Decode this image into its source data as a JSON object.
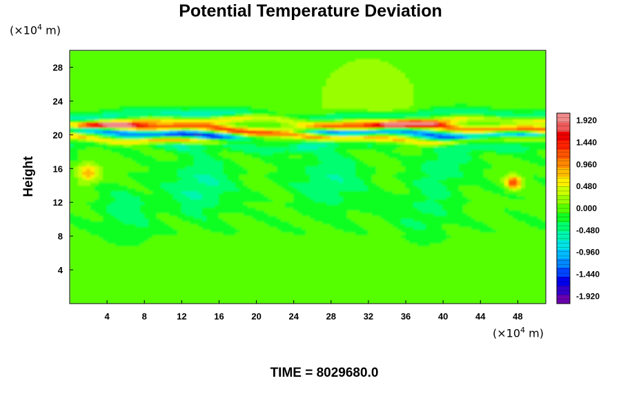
{
  "chart_data": {
    "type": "heatmap",
    "title": "Potential Temperature Deviation",
    "ylabel": "Height",
    "y_unit": {
      "prefix": "(×10",
      "exponent": "4",
      "suffix": " m)"
    },
    "x_unit": {
      "prefix": "(×10",
      "exponent": "4",
      "suffix": " m)"
    },
    "xlim": [
      0,
      51
    ],
    "ylim": [
      0,
      30
    ],
    "x_ticks": [
      4,
      8,
      12,
      16,
      20,
      24,
      28,
      32,
      36,
      40,
      44,
      48
    ],
    "y_ticks": [
      4,
      8,
      12,
      16,
      20,
      24,
      28
    ],
    "colorbar": {
      "range": [
        -2.08,
        2.08
      ],
      "labels": [
        "1.920",
        "1.440",
        "0.960",
        "0.480",
        "0.000",
        "-0.480",
        "-0.960",
        "-1.440",
        "-1.920"
      ],
      "label_values": [
        1.92,
        1.44,
        0.96,
        0.48,
        0.0,
        -0.48,
        -0.96,
        -1.44,
        -1.92
      ],
      "colors": [
        "#6a00b0",
        "#3300cc",
        "#0000ee",
        "#0044ff",
        "#0088ff",
        "#00bbff",
        "#00e5e5",
        "#00f5b0",
        "#00ff70",
        "#11ff22",
        "#55ff00",
        "#99ff00",
        "#ccff00",
        "#ffee00",
        "#ffbb00",
        "#ff8800",
        "#ff5500",
        "#ff2200",
        "#ee0000",
        "#f05a5a",
        "#f08a8a"
      ]
    },
    "background_value": -0.05,
    "features": [
      {
        "kind": "band",
        "y": 20.8,
        "value": 1.6,
        "thickness": 0.45
      },
      {
        "kind": "band",
        "y": 20.2,
        "value": -1.7,
        "thickness": 0.45
      },
      {
        "kind": "band",
        "y": 19.6,
        "value": 1.2,
        "thickness": 0.4
      },
      {
        "kind": "band",
        "y": 21.6,
        "value": 0.9,
        "thickness": 0.45
      },
      {
        "kind": "band",
        "y": 22.3,
        "value": -0.6,
        "thickness": 0.6
      },
      {
        "kind": "band",
        "y": 18.8,
        "value": -0.4,
        "thickness": 0.6
      },
      {
        "kind": "blob",
        "x": 32,
        "y": 24,
        "value": 0.3,
        "radius": 6
      },
      {
        "kind": "blob",
        "x": 2,
        "y": 15.5,
        "value": 0.9,
        "radius": 1.2
      },
      {
        "kind": "blob",
        "x": 47.5,
        "y": 14.4,
        "value": 1.3,
        "radius": 0.8
      },
      {
        "kind": "blob",
        "x": 14,
        "y": 14,
        "value": -0.5,
        "radius": 3.5
      },
      {
        "kind": "blob",
        "x": 28,
        "y": 15,
        "value": -0.45,
        "radius": 4
      },
      {
        "kind": "blob",
        "x": 40,
        "y": 16.5,
        "value": -0.4,
        "radius": 3
      },
      {
        "kind": "blob",
        "x": 6,
        "y": 11,
        "value": -0.35,
        "radius": 3
      },
      {
        "kind": "blob",
        "x": 38,
        "y": 11,
        "value": -0.3,
        "radius": 3
      }
    ]
  },
  "footer": {
    "time_label": "TIME = 8029680.0"
  }
}
